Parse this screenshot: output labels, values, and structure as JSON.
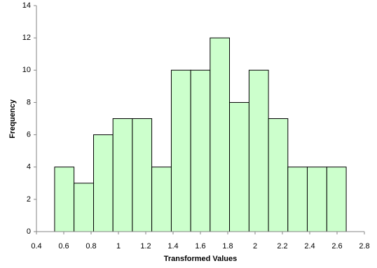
{
  "chart_data": {
    "type": "histogram",
    "xlabel": "Transformed Values",
    "ylabel": "Frequency",
    "bins": [
      0.533,
      0.675,
      0.818,
      0.96,
      1.102,
      1.244,
      1.387,
      1.529,
      1.671,
      1.813,
      1.956,
      2.098,
      2.24,
      2.382,
      2.525,
      2.667
    ],
    "values": [
      4,
      3,
      6,
      7,
      7,
      4,
      10,
      10,
      12,
      8,
      10,
      7,
      4,
      4,
      4
    ],
    "color": "#ccffcc",
    "xlim": [
      0.4,
      2.8
    ],
    "xticks": [
      0.4,
      0.6,
      0.8,
      1,
      1.2,
      1.4,
      1.6,
      1.8,
      2,
      2.2,
      2.4,
      2.6,
      2.8
    ],
    "ylim": [
      0,
      14
    ],
    "yticks": [
      0,
      2,
      4,
      6,
      8,
      10,
      12,
      14
    ],
    "grid": false
  }
}
